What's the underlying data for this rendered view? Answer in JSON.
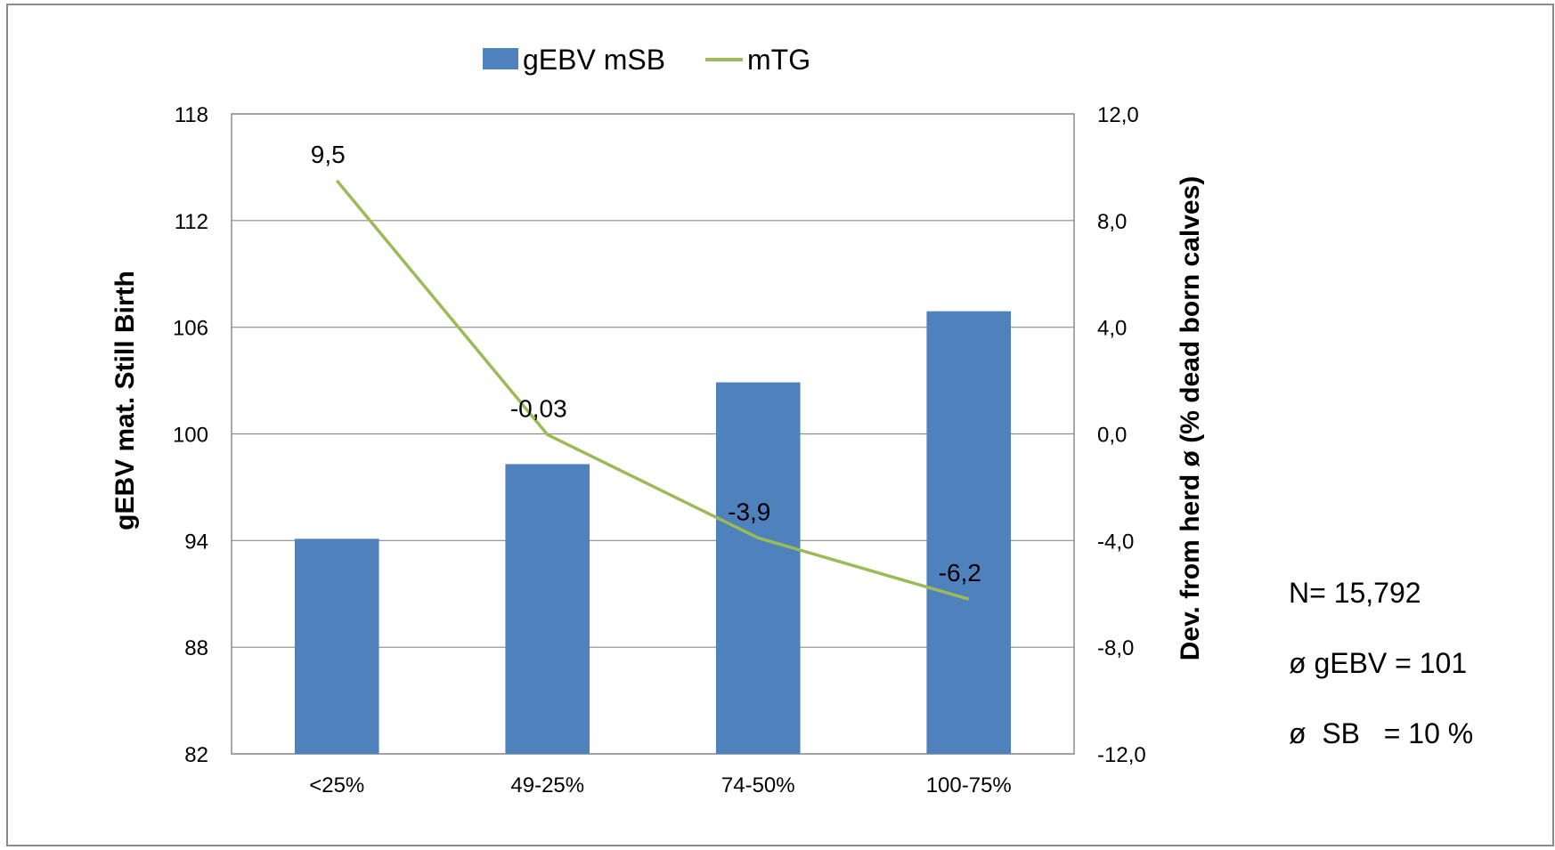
{
  "chart_data": {
    "type": "bar",
    "title": "",
    "categories": [
      "<25%",
      "49-25%",
      "74-50%",
      "100-75%"
    ],
    "series": [
      {
        "name": "gEBV mSB",
        "type": "bar",
        "axis": "left",
        "color": "#4F81BD",
        "values": [
          94.1,
          98.3,
          102.9,
          106.9
        ]
      },
      {
        "name": "mTG",
        "type": "line",
        "axis": "right",
        "color": "#9BBB59",
        "values": [
          9.5,
          -0.03,
          -3.9,
          -6.2
        ],
        "data_labels": [
          "9,5",
          "-0,03",
          "-3,9",
          "-6,2"
        ]
      }
    ],
    "y_left": {
      "label": "gEBV mat. Still Birth",
      "ylim": [
        82,
        118
      ],
      "ticks": [
        82,
        88,
        94,
        100,
        106,
        112,
        118
      ],
      "tick_labels": [
        "82",
        "88",
        "94",
        "100",
        "106",
        "112",
        "118"
      ]
    },
    "y_right": {
      "label": "Dev. from herd ø (% dead born calves)",
      "ylim": [
        -12,
        12
      ],
      "ticks": [
        -12,
        -8,
        -4,
        0,
        4,
        8,
        12
      ],
      "tick_labels": [
        "-12,0",
        "-8,0",
        "-4,0",
        "0,0",
        "4,0",
        "8,0",
        "12,0"
      ]
    },
    "grid": true,
    "legend_position": "top"
  },
  "annotations": {
    "n": "N= 15,792",
    "gebv_mean": "ø gEBV = 101",
    "sb_mean": "ø  SB   = 10 %"
  }
}
